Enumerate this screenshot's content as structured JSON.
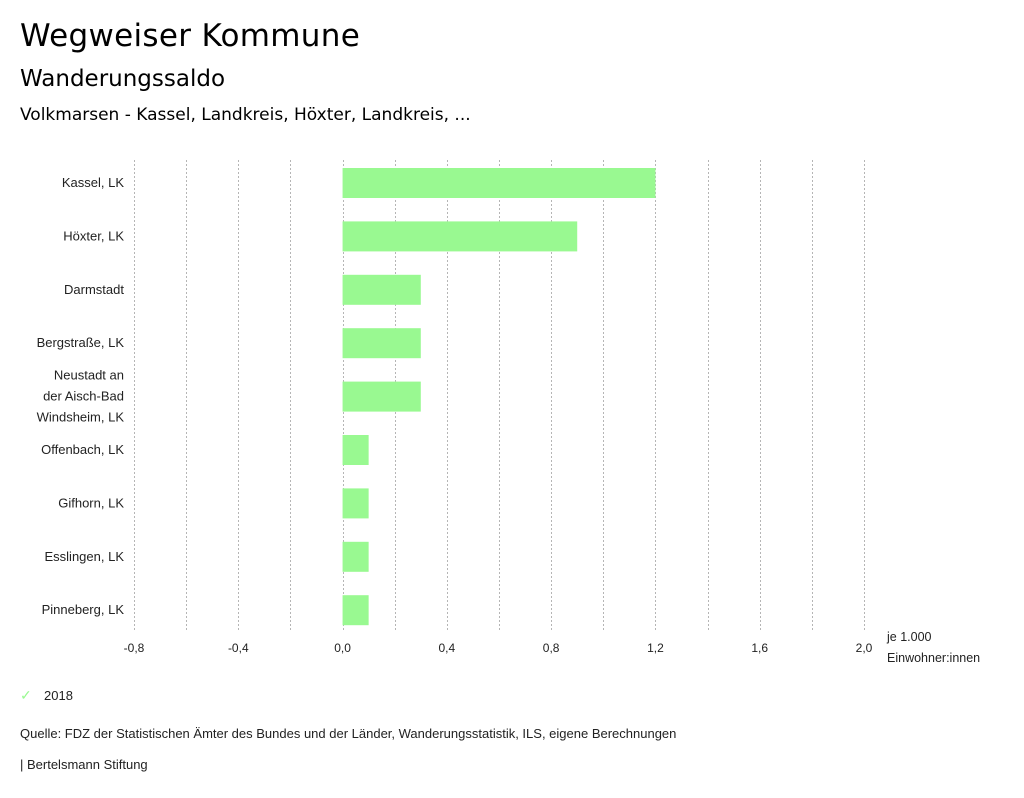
{
  "header": {
    "title": "Wegweiser Kommune",
    "subtitle": "Wanderungssaldo",
    "region": "Volkmarsen - Kassel, Landkreis, Höxter, Landkreis, ..."
  },
  "chart_data": {
    "type": "bar",
    "orientation": "horizontal",
    "title": "Wanderungssaldo",
    "categories": [
      "Kassel, LK",
      "Höxter, LK",
      "Darmstadt",
      "Bergstraße, LK",
      "Neustadt an der Aisch-Bad Windsheim, LK",
      "Offenbach, LK",
      "Gifhorn, LK",
      "Esslingen, LK",
      "Pinneberg, LK"
    ],
    "category_lines": [
      [
        "Kassel, LK"
      ],
      [
        "Höxter, LK"
      ],
      [
        "Darmstadt"
      ],
      [
        "Bergstraße, LK"
      ],
      [
        "Neustadt an",
        "der Aisch-Bad",
        "Windsheim, LK"
      ],
      [
        "Offenbach, LK"
      ],
      [
        "Gifhorn, LK"
      ],
      [
        "Esslingen, LK"
      ],
      [
        "Pinneberg, LK"
      ]
    ],
    "series": [
      {
        "name": "2018",
        "color": "#99f991",
        "values": [
          1.2,
          0.9,
          0.3,
          0.3,
          0.3,
          0.1,
          0.1,
          0.1,
          0.1
        ]
      }
    ],
    "xlim": [
      -0.8,
      2.0
    ],
    "xticks": [
      -0.8,
      -0.6,
      -0.4,
      -0.2,
      0.0,
      0.2,
      0.4,
      0.6,
      0.8,
      1.0,
      1.2,
      1.4,
      1.6,
      1.8,
      2.0
    ],
    "xtick_labels": [
      "-0,8",
      "",
      "-0,4",
      "",
      "0,0",
      "",
      "0,4",
      "",
      "0,8",
      "",
      "1,2",
      "",
      "1,6",
      "",
      "2,0"
    ],
    "xlabel_lines": [
      "je 1.000",
      "Einwohner:innen"
    ],
    "grid": "vertical dotted",
    "legend_position": "bottom-left"
  },
  "legend": {
    "items": [
      {
        "label": "2018",
        "icon": "check-icon",
        "color": "#99f991"
      }
    ]
  },
  "footer": {
    "source": "Quelle: FDZ der Statistischen Ämter des Bundes und der Länder, Wanderungsstatistik, ILS, eigene Berechnungen",
    "credit": "| Bertelsmann Stiftung"
  }
}
